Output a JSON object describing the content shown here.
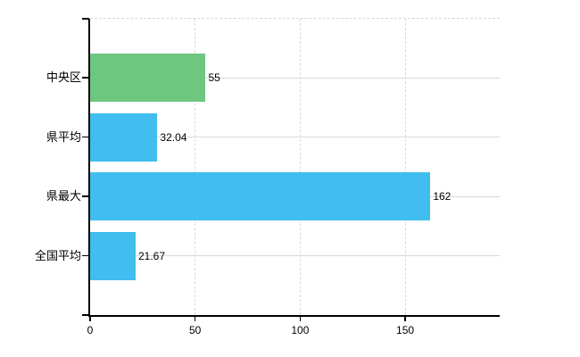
{
  "chart_data": {
    "type": "bar",
    "orientation": "horizontal",
    "title": "",
    "xlabel": "",
    "ylabel": "",
    "categories": [
      "中央区",
      "県平均",
      "県最大",
      "全国平均"
    ],
    "values": [
      55,
      32.04,
      162,
      21.67
    ],
    "value_labels": [
      "55",
      "32.04",
      "162",
      "21.67"
    ],
    "bar_colors": [
      "#6dc77e",
      "#41bdef",
      "#41bdef",
      "#41bdef"
    ],
    "x_ticks": [
      0,
      50,
      100,
      150
    ],
    "x_tick_labels": [
      "0",
      "50",
      "100",
      "150"
    ],
    "xlim": [
      0,
      195
    ],
    "grid": true,
    "legend": null,
    "colors": {
      "green_bar": "#6dc77e",
      "blue_bar": "#41bdef",
      "gridline": "#d9d9d9",
      "axis": "#000000",
      "text": "#000000",
      "background": "#ffffff"
    }
  }
}
